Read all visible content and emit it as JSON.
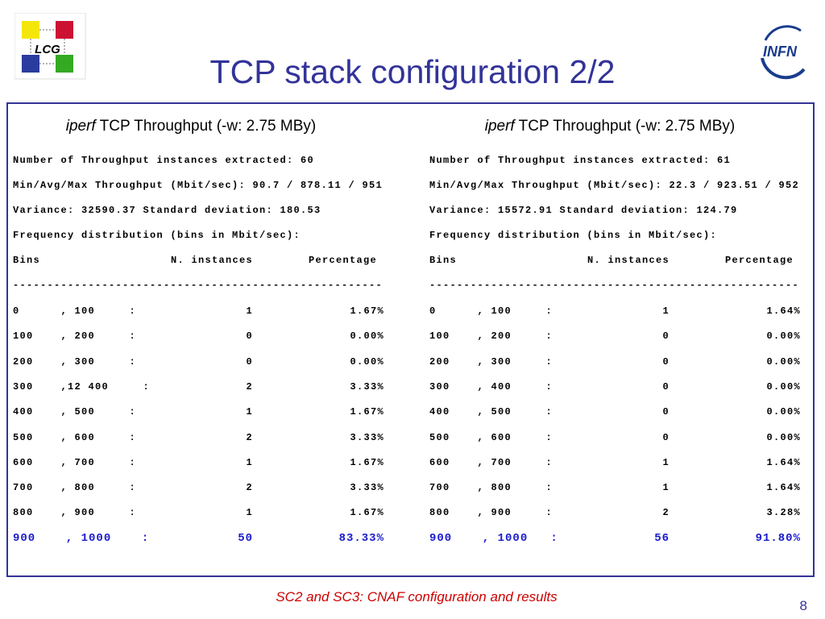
{
  "logos": {
    "left": "LCG",
    "right": "INFN"
  },
  "title": "TCP stack configuration 2/2",
  "panels": [
    {
      "heading": {
        "em": "iperf",
        "text": "TCP Throughput (-w: 2.75 MBy)"
      },
      "summary": [
        "Number of Throughput instances extracted: 60",
        "Min/Avg/Max Throughput (Mbit/sec): 90.7 / 878.11 / 951",
        "Variance: 32590.37 Standard deviation: 180.53",
        "Frequency distribution (bins in Mbit/sec):"
      ],
      "table": {
        "columns": [
          "Bins",
          "N. instances",
          "Percentage"
        ],
        "separator": "------------------------------------------------------",
        "rows": [
          [
            "0      , 100     :",
            1,
            "1.67%"
          ],
          [
            "100    , 200     :",
            0,
            "0.00%"
          ],
          [
            "200    , 300     :",
            0,
            "0.00%"
          ],
          [
            "300    ,12 400     :",
            2,
            "3.33%"
          ],
          [
            "400    , 500     :",
            1,
            "1.67%"
          ],
          [
            "500    , 600     :",
            2,
            "3.33%"
          ],
          [
            "600    , 700     :",
            1,
            "1.67%"
          ],
          [
            "700    , 800     :",
            2,
            "3.33%"
          ],
          [
            "800    , 900     :",
            1,
            "1.67%"
          ],
          [
            "900    , 1000    :",
            50,
            "83.33%"
          ]
        ]
      }
    },
    {
      "heading": {
        "em": "iperf",
        "text": "TCP Throughput (-w: 2.75 MBy)"
      },
      "summary": [
        "Number of Throughput instances extracted: 61",
        "Min/Avg/Max Throughput (Mbit/sec): 22.3 / 923.51 / 952",
        "Variance: 15572.91 Standard deviation: 124.79",
        "Frequency distribution (bins in Mbit/sec):"
      ],
      "table": {
        "columns": [
          "Bins",
          "N. instances",
          "Percentage"
        ],
        "separator": "------------------------------------------------------",
        "rows": [
          [
            "0      , 100     :",
            1,
            "1.64%"
          ],
          [
            "100    , 200     :",
            0,
            "0.00%"
          ],
          [
            "200    , 300     :",
            0,
            "0.00%"
          ],
          [
            "300    , 400     :",
            0,
            "0.00%"
          ],
          [
            "400    , 500     :",
            0,
            "0.00%"
          ],
          [
            "500    , 600     :",
            0,
            "0.00%"
          ],
          [
            "600    , 700     :",
            1,
            "1.64%"
          ],
          [
            "700    , 800     :",
            1,
            "1.64%"
          ],
          [
            "800    , 900     :",
            2,
            "3.28%"
          ],
          [
            "900    , 1000   :",
            56,
            "91.80%"
          ]
        ]
      }
    }
  ],
  "footer": {
    "caption": "SC2 and SC3: CNAF configuration and results",
    "page": 8
  }
}
